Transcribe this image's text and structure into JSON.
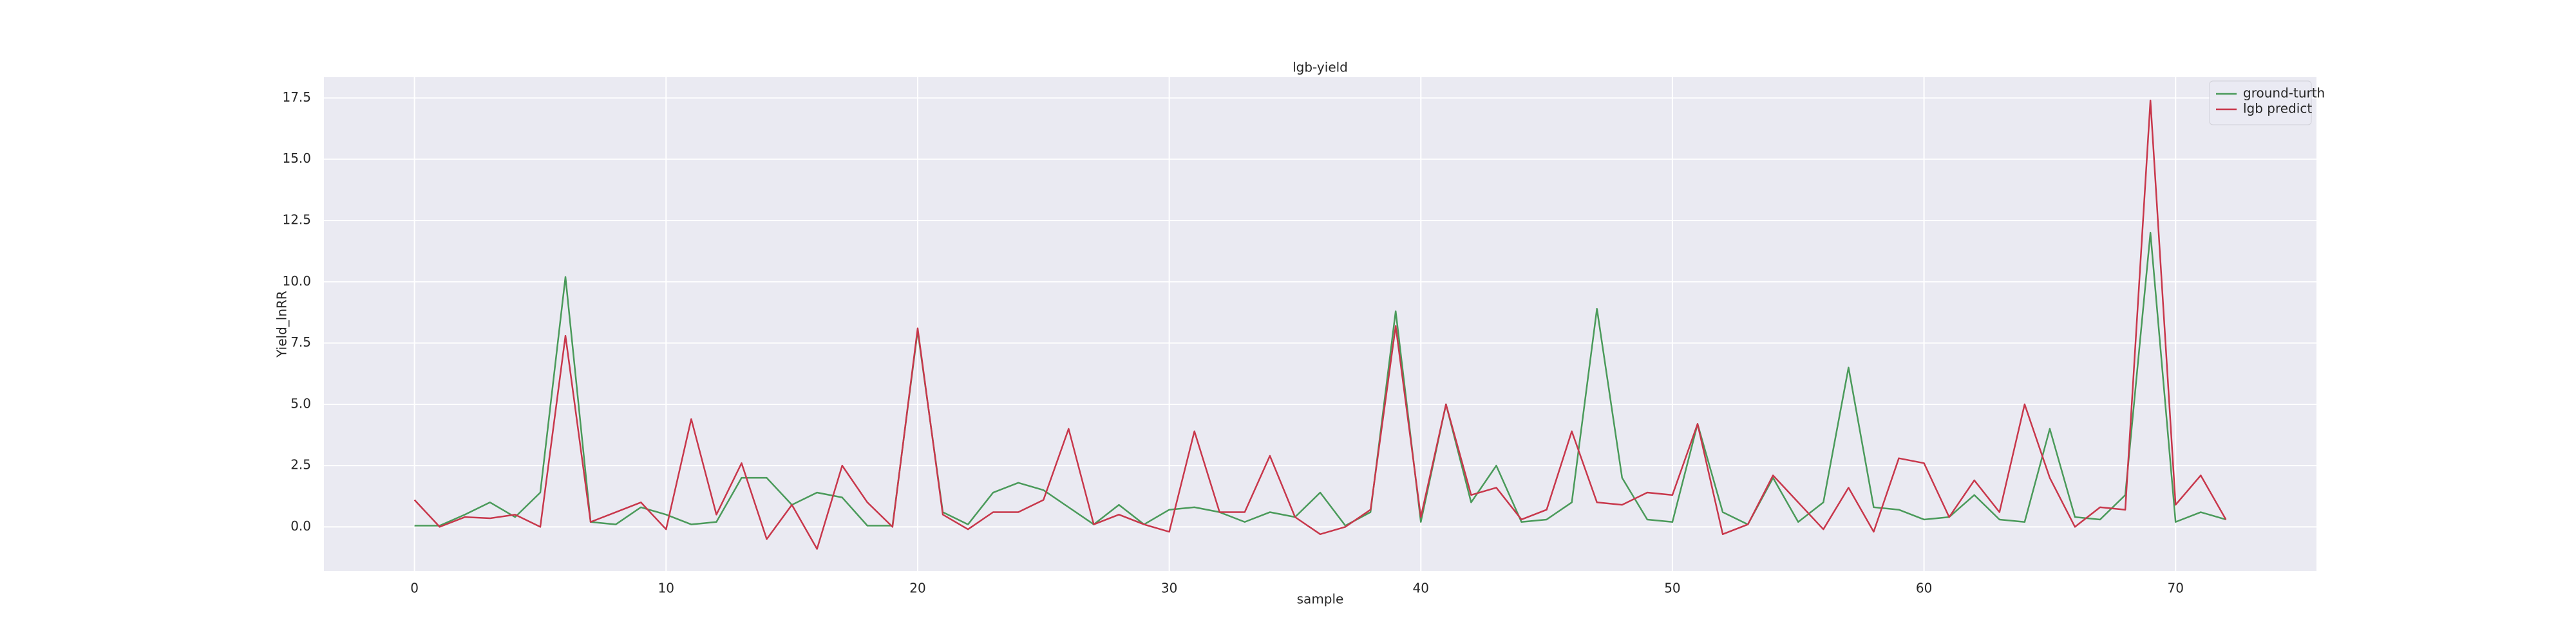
{
  "chart_data": {
    "type": "line",
    "title": "lgb-yield",
    "xlabel": "sample",
    "ylabel": "Yield_lnRR",
    "x": [
      0,
      1,
      2,
      3,
      4,
      5,
      6,
      7,
      8,
      9,
      10,
      11,
      12,
      13,
      14,
      15,
      16,
      17,
      18,
      19,
      20,
      21,
      22,
      23,
      24,
      25,
      26,
      27,
      28,
      29,
      30,
      31,
      32,
      33,
      34,
      35,
      36,
      37,
      38,
      39,
      40,
      41,
      42,
      43,
      44,
      45,
      46,
      47,
      48,
      49,
      50,
      51,
      52,
      53,
      54,
      55,
      56,
      57,
      58,
      59,
      60,
      61,
      62,
      63,
      64,
      65,
      66,
      67,
      68,
      69,
      70,
      71,
      72
    ],
    "series": [
      {
        "name": "ground-turth",
        "color": "#4a9a5a",
        "values": [
          0.05,
          0.05,
          0.5,
          1.0,
          0.4,
          1.4,
          10.2,
          0.2,
          0.1,
          0.8,
          0.5,
          0.1,
          0.2,
          2.0,
          2.0,
          0.9,
          1.4,
          1.2,
          0.05,
          0.05,
          8.0,
          0.6,
          0.1,
          1.4,
          1.8,
          1.5,
          0.8,
          0.1,
          0.9,
          0.1,
          0.7,
          0.8,
          0.6,
          0.2,
          0.6,
          0.4,
          1.4,
          0.05,
          0.6,
          8.8,
          0.2,
          5.0,
          1.0,
          2.5,
          0.2,
          0.3,
          1.0,
          8.9,
          2.0,
          0.3,
          0.2,
          4.2,
          0.6,
          0.1,
          2.0,
          0.2,
          1.0,
          6.5,
          0.8,
          0.7,
          0.3,
          0.4,
          1.3,
          0.3,
          0.2,
          4.0,
          0.4,
          0.3,
          1.3,
          12.0,
          0.2,
          0.6,
          0.3
        ]
      },
      {
        "name": "lgb predict",
        "color": "#c8374b",
        "values": [
          1.1,
          0.0,
          0.4,
          0.35,
          0.5,
          0.0,
          7.8,
          0.2,
          0.6,
          1.0,
          -0.1,
          4.4,
          0.5,
          2.6,
          -0.5,
          0.9,
          -0.9,
          2.5,
          1.0,
          0.0,
          8.1,
          0.5,
          -0.1,
          0.6,
          0.6,
          1.1,
          4.0,
          0.1,
          0.5,
          0.1,
          -0.2,
          3.9,
          0.6,
          0.6,
          2.9,
          0.4,
          -0.3,
          0.0,
          0.7,
          8.2,
          0.4,
          5.0,
          1.3,
          1.6,
          0.3,
          0.7,
          3.9,
          1.0,
          0.9,
          1.4,
          1.3,
          4.2,
          -0.3,
          0.1,
          2.1,
          1.0,
          -0.1,
          1.6,
          -0.2,
          2.8,
          2.6,
          0.4,
          1.9,
          0.6,
          5.0,
          2.0,
          0.0,
          0.8,
          0.7,
          17.4,
          0.9,
          2.1,
          0.3
        ]
      }
    ],
    "xlim": [
      -3.6,
      75.6
    ],
    "ylim": [
      -1.8,
      18.35
    ],
    "xticks": [
      0,
      10,
      20,
      30,
      40,
      50,
      60,
      70
    ],
    "yticks": [
      {
        "value": 0,
        "label": "0.0"
      },
      2.5,
      {
        "value": 5,
        "label": "5.0"
      },
      7.5,
      {
        "value": 10,
        "label": "10.0"
      },
      12.5,
      {
        "value": 15,
        "label": "15.0"
      },
      17.5
    ],
    "grid": true,
    "legend": "upper right"
  }
}
